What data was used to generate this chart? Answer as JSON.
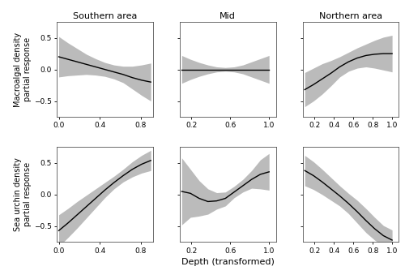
{
  "col_titles": [
    "Southern area",
    "Mid",
    "Northern area"
  ],
  "row_ylabels": [
    "Macroalgal density\npartial response",
    "Sea urchin density\npartial response"
  ],
  "xlabel": "Depth (transformed)",
  "background_color": "#ffffff",
  "ci_color": "#bbbbbb",
  "line_color": "#000000",
  "panels": [
    {
      "row": 0,
      "col": 0,
      "xlim": [
        -0.02,
        0.92
      ],
      "ylim": [
        -0.75,
        0.75
      ],
      "xticks": [
        0.0,
        0.4,
        0.8
      ],
      "yticks": [
        -0.5,
        0.0,
        0.5
      ],
      "x": [
        0.0,
        0.09,
        0.18,
        0.27,
        0.36,
        0.45,
        0.54,
        0.63,
        0.72,
        0.81,
        0.9
      ],
      "y": [
        0.2,
        0.16,
        0.12,
        0.08,
        0.04,
        0.0,
        -0.04,
        -0.08,
        -0.13,
        -0.17,
        -0.2
      ],
      "ci_upper": [
        0.52,
        0.42,
        0.33,
        0.24,
        0.17,
        0.11,
        0.07,
        0.05,
        0.05,
        0.07,
        0.1
      ],
      "ci_lower": [
        -0.12,
        -0.1,
        -0.09,
        -0.08,
        -0.09,
        -0.11,
        -0.15,
        -0.21,
        -0.31,
        -0.41,
        -0.5
      ]
    },
    {
      "row": 0,
      "col": 1,
      "xlim": [
        0.08,
        1.07
      ],
      "ylim": [
        -0.75,
        0.75
      ],
      "xticks": [
        0.2,
        0.6,
        1.0
      ],
      "yticks": [
        -0.5,
        0.0,
        0.5
      ],
      "x": [
        0.1,
        0.19,
        0.28,
        0.37,
        0.46,
        0.55,
        0.64,
        0.73,
        0.82,
        0.91,
        1.0
      ],
      "y": [
        0.0,
        0.0,
        0.0,
        0.0,
        0.0,
        0.0,
        0.0,
        0.0,
        0.0,
        0.0,
        0.0
      ],
      "ci_upper": [
        0.22,
        0.16,
        0.11,
        0.07,
        0.04,
        0.03,
        0.04,
        0.07,
        0.12,
        0.17,
        0.22
      ],
      "ci_lower": [
        -0.22,
        -0.16,
        -0.11,
        -0.07,
        -0.04,
        -0.03,
        -0.04,
        -0.07,
        -0.12,
        -0.17,
        -0.22
      ]
    },
    {
      "row": 0,
      "col": 2,
      "xlim": [
        0.08,
        1.07
      ],
      "ylim": [
        -0.75,
        0.75
      ],
      "xticks": [
        0.2,
        0.4,
        0.6,
        0.8,
        1.0
      ],
      "yticks": [
        -0.5,
        0.0,
        0.5
      ],
      "x": [
        0.1,
        0.19,
        0.28,
        0.37,
        0.46,
        0.55,
        0.64,
        0.73,
        0.82,
        0.91,
        1.0
      ],
      "y": [
        -0.32,
        -0.24,
        -0.15,
        -0.06,
        0.04,
        0.12,
        0.18,
        0.22,
        0.24,
        0.25,
        0.25
      ],
      "ci_upper": [
        -0.05,
        0.02,
        0.09,
        0.14,
        0.2,
        0.27,
        0.34,
        0.4,
        0.46,
        0.51,
        0.54
      ],
      "ci_lower": [
        -0.59,
        -0.5,
        -0.39,
        -0.26,
        -0.12,
        -0.03,
        0.02,
        0.04,
        0.02,
        -0.01,
        -0.04
      ]
    },
    {
      "row": 1,
      "col": 0,
      "xlim": [
        -0.02,
        0.92
      ],
      "ylim": [
        -0.75,
        0.75
      ],
      "xticks": [
        0.0,
        0.4,
        0.8
      ],
      "yticks": [
        -0.5,
        0.0,
        0.5
      ],
      "x": [
        0.0,
        0.09,
        0.18,
        0.27,
        0.36,
        0.45,
        0.54,
        0.63,
        0.72,
        0.81,
        0.9
      ],
      "y": [
        -0.57,
        -0.45,
        -0.32,
        -0.19,
        -0.06,
        0.07,
        0.19,
        0.3,
        0.4,
        0.48,
        0.54
      ],
      "ci_upper": [
        -0.32,
        -0.22,
        -0.11,
        -0.01,
        0.09,
        0.19,
        0.29,
        0.4,
        0.52,
        0.62,
        0.7
      ],
      "ci_lower": [
        -0.82,
        -0.68,
        -0.53,
        -0.37,
        -0.21,
        -0.05,
        0.09,
        0.2,
        0.28,
        0.34,
        0.38
      ]
    },
    {
      "row": 1,
      "col": 1,
      "xlim": [
        0.08,
        1.07
      ],
      "ylim": [
        -0.75,
        0.75
      ],
      "xticks": [
        0.2,
        0.6,
        1.0
      ],
      "yticks": [
        -0.5,
        0.0,
        0.5
      ],
      "x": [
        0.1,
        0.19,
        0.28,
        0.37,
        0.46,
        0.55,
        0.64,
        0.73,
        0.82,
        0.91,
        1.0
      ],
      "y": [
        0.05,
        0.02,
        -0.06,
        -0.11,
        -0.1,
        -0.06,
        0.04,
        0.14,
        0.24,
        0.32,
        0.36
      ],
      "ci_upper": [
        0.58,
        0.4,
        0.22,
        0.09,
        0.03,
        0.04,
        0.13,
        0.24,
        0.38,
        0.55,
        0.65
      ],
      "ci_lower": [
        -0.48,
        -0.36,
        -0.34,
        -0.31,
        -0.23,
        -0.18,
        -0.05,
        0.04,
        0.1,
        0.09,
        0.07
      ]
    },
    {
      "row": 1,
      "col": 2,
      "xlim": [
        0.08,
        1.07
      ],
      "ylim": [
        -0.75,
        0.75
      ],
      "xticks": [
        0.2,
        0.4,
        0.6,
        0.8,
        1.0
      ],
      "yticks": [
        -0.5,
        0.0,
        0.5
      ],
      "x": [
        0.1,
        0.19,
        0.28,
        0.37,
        0.46,
        0.55,
        0.64,
        0.73,
        0.82,
        0.91,
        1.0
      ],
      "y": [
        0.38,
        0.3,
        0.2,
        0.09,
        -0.02,
        -0.14,
        -0.27,
        -0.41,
        -0.54,
        -0.65,
        -0.72
      ],
      "ci_upper": [
        0.62,
        0.52,
        0.4,
        0.27,
        0.14,
        0.02,
        -0.09,
        -0.22,
        -0.36,
        -0.49,
        -0.56
      ],
      "ci_lower": [
        0.14,
        0.08,
        -0.0,
        -0.09,
        -0.18,
        -0.3,
        -0.45,
        -0.6,
        -0.72,
        -0.81,
        -0.88
      ]
    }
  ]
}
